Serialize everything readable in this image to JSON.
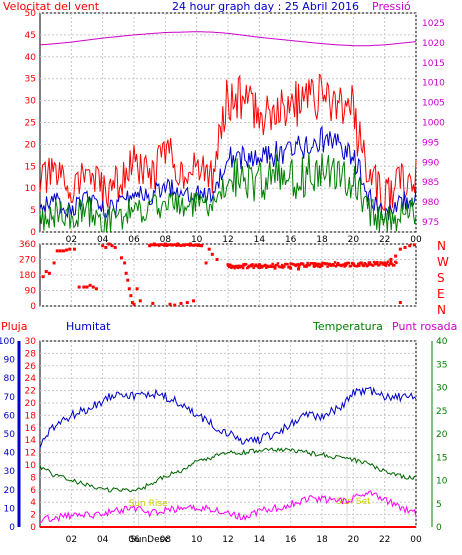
{
  "chart_data": [
    {
      "type": "line",
      "title": "24 hour graph day : 25 Abril 2016",
      "left_label": "Velocitat del vent",
      "right_label": "Pressió",
      "x_ticks": [
        "02",
        "04",
        "06",
        "08",
        "10",
        "12",
        "14",
        "16",
        "18",
        "20",
        "22",
        "00"
      ],
      "y_ticks_left": [
        0,
        5,
        10,
        15,
        20,
        25,
        30,
        35,
        40,
        45,
        50
      ],
      "y_ticks_right": [
        975,
        980,
        985,
        990,
        995,
        1000,
        1005,
        1010,
        1015,
        1020,
        1025
      ],
      "ylim_left": [
        0,
        50
      ],
      "ylim_right": [
        972.5,
        1027.5
      ],
      "x_hours": [
        0,
        1,
        2,
        3,
        4,
        5,
        6,
        7,
        8,
        9,
        10,
        11,
        12,
        13,
        14,
        15,
        16,
        17,
        18,
        19,
        20,
        21,
        22,
        23,
        24
      ],
      "series": [
        {
          "role": "gust",
          "color": "#ff0000",
          "values": [
            12,
            13,
            10,
            14,
            9,
            11,
            16,
            12,
            19,
            14,
            14,
            13,
            32,
            30,
            27,
            29,
            29,
            30,
            31,
            30,
            27,
            13,
            8,
            11,
            13
          ]
        },
        {
          "role": "avg",
          "color": "#0000cc",
          "values": [
            6,
            7,
            5,
            8,
            5,
            6,
            9,
            8,
            11,
            9,
            9,
            8,
            18,
            17,
            16,
            18,
            19,
            19,
            21,
            21,
            17,
            8,
            4,
            7,
            8
          ]
        },
        {
          "role": "min",
          "color": "#008000",
          "values": [
            3,
            4,
            3,
            5,
            2,
            3,
            5,
            5,
            7,
            6,
            6,
            5,
            13,
            12,
            11,
            13,
            12,
            13,
            14,
            14,
            11,
            5,
            2,
            4,
            5
          ]
        },
        {
          "role": "pressure",
          "color": "#cc00cc",
          "values": [
            1019.5,
            1019.8,
            1020.2,
            1020.7,
            1021.2,
            1021.6,
            1022.0,
            1022.3,
            1022.6,
            1022.7,
            1022.8,
            1022.7,
            1022.4,
            1021.9,
            1021.4,
            1021.0,
            1020.6,
            1020.2,
            1019.8,
            1019.5,
            1019.3,
            1019.3,
            1019.5,
            1019.9,
            1020.3
          ]
        }
      ]
    },
    {
      "type": "scatter",
      "right_letters": [
        "N",
        "W",
        "S",
        "E",
        "N"
      ],
      "y_ticks_left": [
        0,
        90,
        180,
        270,
        360
      ],
      "ylim": [
        0,
        360
      ],
      "x_ticks": [
        "02",
        "04",
        "06",
        "08",
        "10",
        "12",
        "14",
        "16",
        "18",
        "20",
        "22",
        "00"
      ],
      "color": "#ff0000",
      "points": [
        [
          0.2,
          170
        ],
        [
          0.4,
          200
        ],
        [
          0.6,
          190
        ],
        [
          0.9,
          250
        ],
        [
          1.1,
          320
        ],
        [
          1.3,
          320
        ],
        [
          1.5,
          320
        ],
        [
          1.7,
          325
        ],
        [
          1.9,
          330
        ],
        [
          2.2,
          330
        ],
        [
          2.5,
          110
        ],
        [
          2.8,
          110
        ],
        [
          3.0,
          110
        ],
        [
          3.2,
          120
        ],
        [
          3.4,
          110
        ],
        [
          3.6,
          100
        ],
        [
          4.0,
          350
        ],
        [
          4.2,
          340
        ],
        [
          4.4,
          360
        ],
        [
          4.6,
          350
        ],
        [
          4.8,
          340
        ],
        [
          5.2,
          280
        ],
        [
          5.4,
          250
        ],
        [
          5.5,
          190
        ],
        [
          5.6,
          150
        ],
        [
          5.7,
          100
        ],
        [
          5.8,
          60
        ],
        [
          5.9,
          20
        ],
        [
          6.0,
          10
        ],
        [
          6.2,
          100
        ],
        [
          6.4,
          30
        ],
        [
          7.0,
          350
        ],
        [
          7.3,
          360
        ],
        [
          7.6,
          355
        ],
        [
          8.0,
          360
        ],
        [
          8.4,
          355
        ],
        [
          8.8,
          360
        ],
        [
          9.2,
          355
        ],
        [
          9.6,
          360
        ],
        [
          10.0,
          355
        ],
        [
          10.3,
          350
        ],
        [
          7.2,
          15
        ],
        [
          8.3,
          10
        ],
        [
          8.6,
          5
        ],
        [
          9.0,
          15
        ],
        [
          9.4,
          20
        ],
        [
          9.8,
          30
        ],
        [
          10.6,
          250
        ],
        [
          10.8,
          330
        ],
        [
          11.0,
          300
        ],
        [
          11.3,
          270
        ],
        [
          12.0,
          240
        ],
        [
          12.5,
          230
        ],
        [
          13.0,
          240
        ],
        [
          13.5,
          235
        ],
        [
          14.0,
          240
        ],
        [
          14.5,
          230
        ],
        [
          15.0,
          220
        ],
        [
          15.5,
          225
        ],
        [
          16.0,
          220
        ],
        [
          16.5,
          215
        ],
        [
          17.0,
          230
        ],
        [
          17.5,
          230
        ],
        [
          18.0,
          235
        ],
        [
          18.5,
          240
        ],
        [
          19.0,
          240
        ],
        [
          19.5,
          245
        ],
        [
          20.0,
          245
        ],
        [
          20.5,
          250
        ],
        [
          21.0,
          250
        ],
        [
          21.5,
          245
        ],
        [
          22.0,
          250
        ],
        [
          22.4,
          270
        ],
        [
          22.7,
          290
        ],
        [
          23.0,
          330
        ],
        [
          23.3,
          340
        ],
        [
          23.6,
          350
        ],
        [
          23.9,
          355
        ],
        [
          23.0,
          20
        ]
      ]
    },
    {
      "type": "line",
      "left_labels": [
        "Pluja",
        "Humitat"
      ],
      "right_labels": [
        "Temperatura",
        "Punt rosada"
      ],
      "annotations": [
        "Sun Rise",
        "SunDesc",
        "Sun Set"
      ],
      "x_ticks": [
        "02",
        "04",
        "06",
        "08",
        "10",
        "12",
        "14",
        "16",
        "18",
        "20",
        "22",
        "00"
      ],
      "y_ticks_rain": [
        0,
        10,
        20,
        30,
        40,
        50,
        60,
        70,
        80,
        90,
        100
      ],
      "y_ticks_humidity": [
        0,
        2,
        4,
        6,
        8,
        10,
        12,
        14,
        16,
        18,
        20,
        22,
        24,
        26,
        28,
        30
      ],
      "y_ticks_temperature": [
        0,
        5,
        10,
        15,
        20,
        25,
        30,
        35,
        40
      ],
      "x_hours": [
        0,
        1,
        2,
        3,
        4,
        5,
        6,
        7,
        8,
        9,
        10,
        11,
        12,
        13,
        14,
        15,
        16,
        17,
        18,
        19,
        20,
        21,
        22,
        23,
        24
      ],
      "series": [
        {
          "name": "Humitat",
          "color": "#0000cc",
          "ylim": [
            0,
            100
          ],
          "values": [
            44,
            55,
            60,
            63,
            68,
            73,
            70,
            72,
            70,
            66,
            60,
            55,
            50,
            46,
            47,
            50,
            55,
            60,
            60,
            63,
            72,
            73,
            70,
            70,
            70
          ]
        },
        {
          "name": "Temperatura",
          "color": "#006600",
          "ylim": [
            0,
            40
          ],
          "values": [
            13,
            11,
            10,
            9,
            8,
            8,
            8,
            9,
            11,
            12,
            14,
            15,
            16,
            16,
            16.5,
            16.5,
            16.5,
            16,
            15.5,
            15,
            14.5,
            13.5,
            12,
            11,
            10.5
          ]
        },
        {
          "name": "Punt rosada",
          "color": "#ff00ff",
          "ylim": [
            0,
            40
          ],
          "values": [
            1.5,
            2,
            2.5,
            2.5,
            3,
            3.5,
            4,
            3,
            3.5,
            4,
            4,
            4,
            3,
            2,
            3.5,
            4,
            5,
            6,
            6,
            5.5,
            6,
            8,
            6,
            4,
            3
          ]
        },
        {
          "name": "Pluja",
          "color": "#ff0000",
          "ylim": [
            0,
            100
          ],
          "values": [
            0,
            0,
            0,
            0,
            0,
            0,
            0,
            0,
            0,
            0,
            0,
            0,
            0,
            0,
            0,
            0,
            0,
            0,
            0,
            0,
            0,
            0,
            0,
            0,
            0
          ]
        }
      ]
    }
  ]
}
